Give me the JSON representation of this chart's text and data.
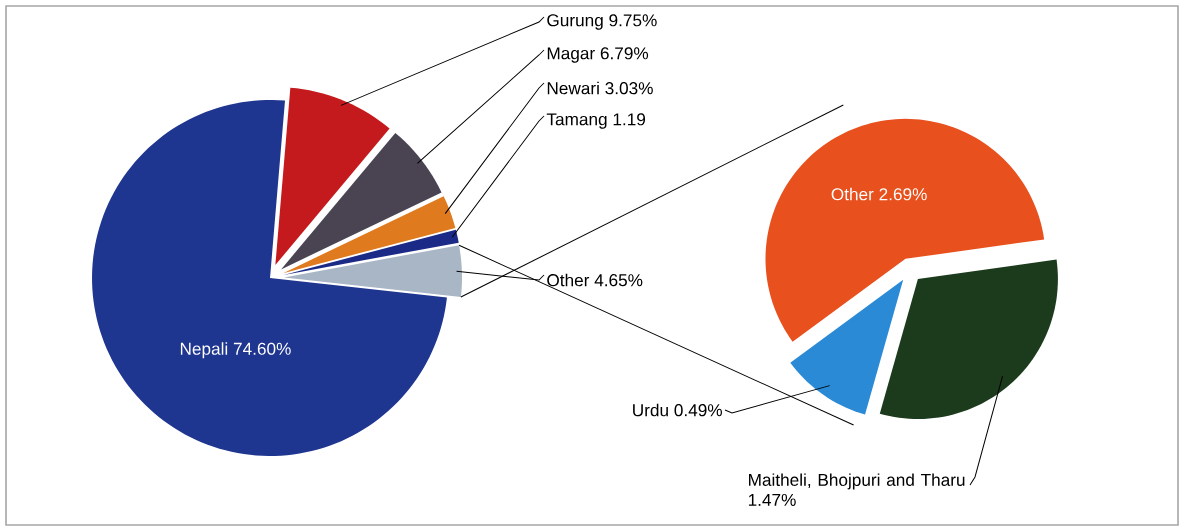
{
  "chart_data": [
    {
      "type": "pie",
      "categories": [
        "Nepali",
        "Gurung",
        "Magar",
        "Newari",
        "Tamang",
        "Other"
      ],
      "values": [
        74.6,
        9.75,
        6.79,
        3.03,
        1.19,
        4.65
      ],
      "value_labels": [
        "74.60%",
        "9.75%",
        "6.79%",
        "3.03%",
        "1.19",
        "4.65%"
      ],
      "colors": [
        "#1f3690",
        "#c41a1e",
        "#4a4452",
        "#e07a1e",
        "#1a2a86",
        "#a9b6c6"
      ]
    },
    {
      "type": "pie",
      "categories": [
        "Other",
        "Urdu",
        "Maitheli, Bhojpuri and Tharu"
      ],
      "values": [
        2.69,
        0.49,
        1.47
      ],
      "value_labels": [
        "2.69%",
        "0.49%",
        "1.47%"
      ],
      "colors": [
        "#e8501e",
        "#2a8ad6",
        "#1c3a1c"
      ]
    }
  ]
}
